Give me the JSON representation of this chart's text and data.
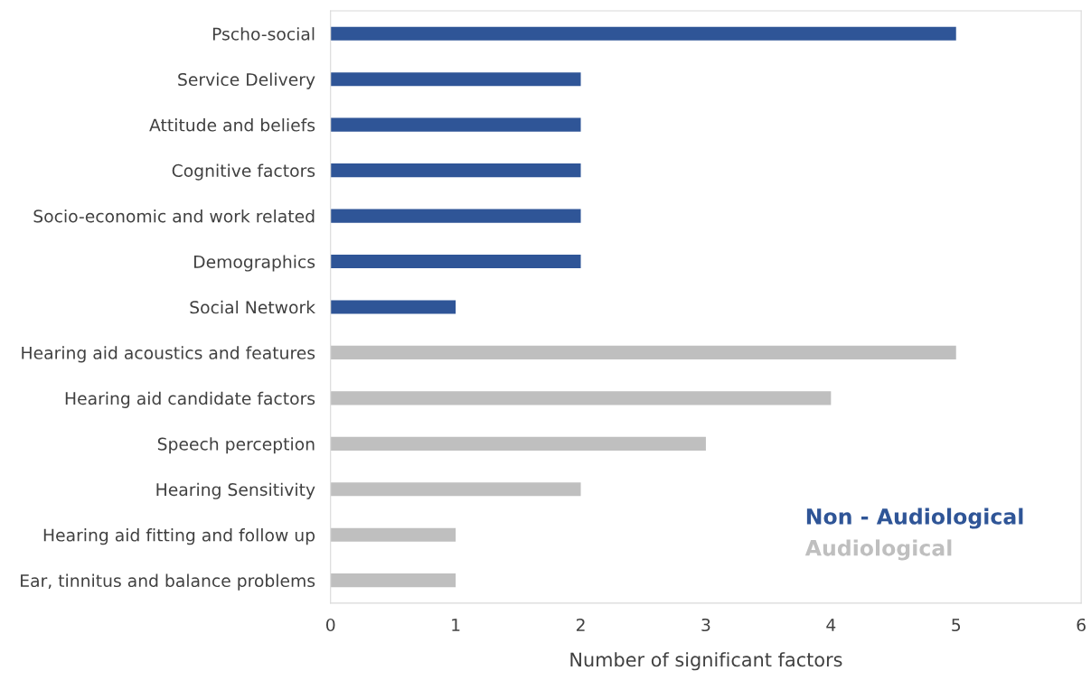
{
  "chart_data": {
    "type": "bar",
    "orientation": "horizontal",
    "xlabel": "Number of significant factors",
    "categories": [
      "Pscho-social",
      "Service Delivery",
      "Attitude and beliefs",
      "Cognitive factors",
      "Socio-economic and work related",
      "Demographics",
      "Social Network",
      "Hearing aid acoustics and features",
      "Hearing aid candidate factors",
      "Speech perception",
      "Hearing Sensitivity",
      "Hearing aid fitting and follow up",
      "Ear, tinnitus and balance problems"
    ],
    "series": [
      {
        "name": "Non - Audiological",
        "color": "#2f5597",
        "values": [
          5,
          2,
          2,
          2,
          2,
          2,
          1,
          null,
          null,
          null,
          null,
          null,
          null
        ]
      },
      {
        "name": "Audiological",
        "color": "#bfbfbf",
        "values": [
          null,
          null,
          null,
          null,
          null,
          null,
          null,
          5,
          4,
          3,
          2,
          1,
          1
        ]
      }
    ],
    "xlim": [
      0,
      6
    ],
    "xticks": [
      0,
      1,
      2,
      3,
      4,
      5,
      6
    ],
    "grid": false,
    "legend": "bottom right"
  }
}
